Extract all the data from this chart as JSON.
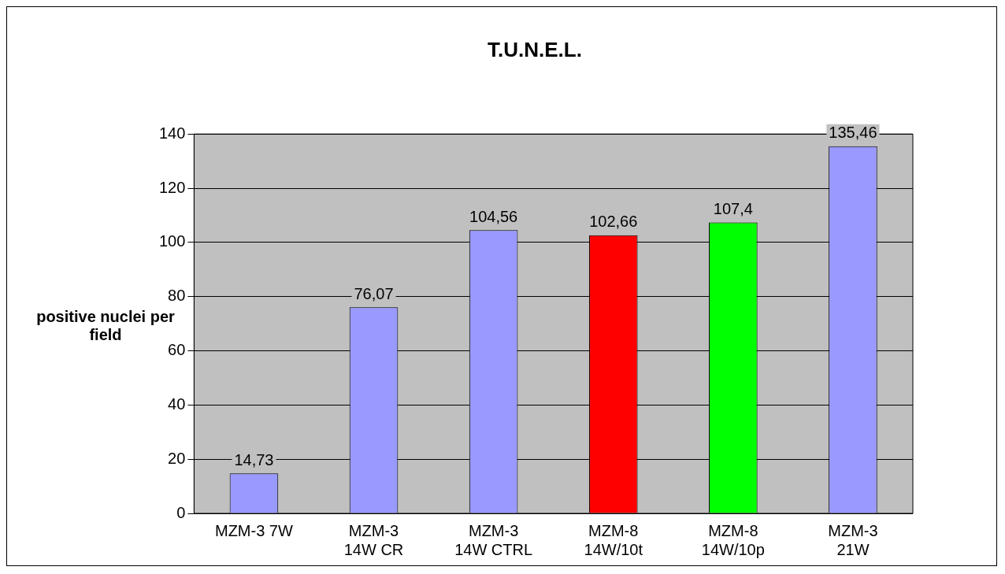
{
  "chart_data": {
    "type": "bar",
    "title": "T.U.N.E.L.",
    "ylabel": "positive nuclei per field",
    "categories": [
      "MZM-3 7W",
      "MZM-3 14W CR",
      "MZM-3 14W CTRL",
      "MZM-8 14W/10t",
      "MZM-8 14W/10p",
      "MZM-3 21W"
    ],
    "values": [
      14.73,
      76.07,
      104.56,
      102.66,
      107.4,
      135.46
    ],
    "colors": [
      "#9999ff",
      "#9999ff",
      "#9999ff",
      "#ff0000",
      "#00ff00",
      "#9999ff"
    ],
    "value_labels": [
      "14,73",
      "76,07",
      "104,56",
      "102,66",
      "107,4",
      "135,46"
    ],
    "ylim": [
      0,
      140
    ],
    "yticks": [
      0,
      20,
      40,
      60,
      80,
      100,
      120,
      140
    ],
    "grid": "y",
    "legend": false
  }
}
